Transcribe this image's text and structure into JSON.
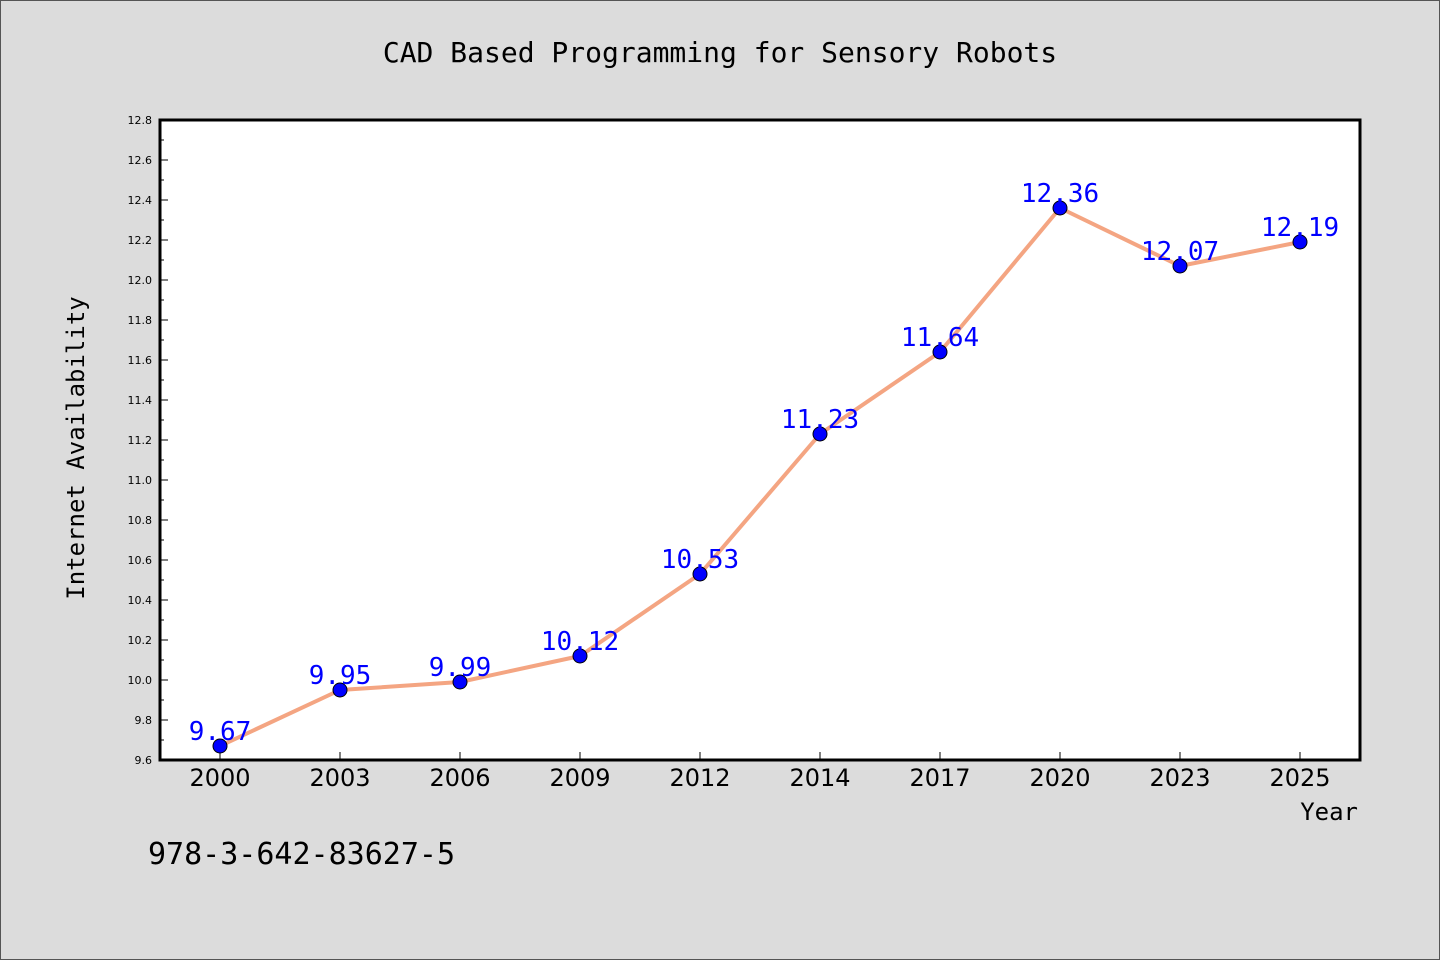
{
  "chart_data": {
    "type": "line",
    "title": "CAD Based Programming for Sensory Robots",
    "xlabel": "Year",
    "ylabel": "Internet Availability",
    "categories": [
      "2000",
      "2003",
      "2006",
      "2009",
      "2012",
      "2014",
      "2017",
      "2020",
      "2023",
      "2025"
    ],
    "series": [
      {
        "values": [
          9.67,
          9.95,
          9.99,
          10.12,
          10.53,
          11.23,
          11.64,
          12.36,
          12.07,
          12.19
        ],
        "labels": [
          "9.67",
          "9.95",
          "9.99",
          "10.12",
          "10.53",
          "11.23",
          "11.64",
          "12.36",
          "12.07",
          "12.19"
        ],
        "line_color": "#f4a582",
        "marker_color": "#0000ff",
        "label_color": "#0000ff"
      }
    ],
    "ylim": [
      9.6,
      12.8
    ],
    "yticks": [
      "9.6",
      "9.8",
      "10.0",
      "10.2",
      "10.4",
      "10.6",
      "10.8",
      "11.0",
      "11.2",
      "11.4",
      "11.6",
      "11.8",
      "12.0",
      "12.2",
      "12.4",
      "12.6",
      "12.8"
    ],
    "grid": false,
    "legend": "none"
  },
  "footer": {
    "isbn": "978-3-642-83627-5"
  },
  "colors": {
    "background": "#dcdcdc",
    "plot_area": "#ffffff"
  }
}
